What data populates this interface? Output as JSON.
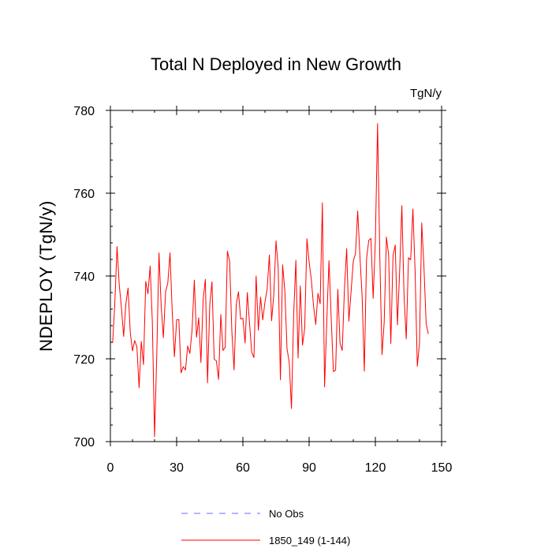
{
  "chart_data": {
    "type": "line",
    "title": "Total N Deployed in New Growth",
    "units": "TgN/y",
    "xlabel": "",
    "ylabel": "NDEPLOY  (TgN/y)",
    "xlim": [
      0,
      150
    ],
    "ylim": [
      700,
      780
    ],
    "xticks": [
      0,
      30,
      60,
      90,
      120,
      150
    ],
    "yticks": [
      700,
      720,
      740,
      760,
      780
    ],
    "grid": false,
    "legend_position": "bottom",
    "series": [
      {
        "name": "1850_149 (1-144)",
        "color": "#ff0000",
        "style": "solid",
        "x_start": 1,
        "values": [
          723.8,
          733.4,
          747.1,
          737.9,
          732.3,
          725.4,
          733.3,
          737.1,
          726.4,
          721.9,
          724.4,
          722.9,
          713.0,
          724.2,
          718.6,
          738.7,
          735.7,
          742.4,
          728.8,
          701.2,
          721.0,
          745.6,
          732.7,
          725.1,
          736.2,
          738.3,
          745.6,
          731.3,
          720.5,
          729.4,
          729.5,
          716.6,
          718.1,
          717.3,
          723.1,
          721.3,
          727.1,
          739.0,
          725.2,
          729.9,
          719.1,
          734.3,
          739.2,
          714.2,
          733.0,
          738.6,
          719.9,
          719.5,
          715.0,
          730.7,
          722.0,
          722.8,
          746.0,
          743.5,
          726.7,
          717.3,
          733.1,
          736.2,
          729.6,
          729.8,
          723.8,
          736.0,
          728.7,
          721.6,
          720.3,
          740.0,
          726.9,
          734.9,
          729.4,
          733.7,
          736.9,
          745.1,
          729.2,
          735.5,
          748.5,
          742.0,
          714.9,
          742.7,
          736.4,
          722.4,
          719.1,
          708.0,
          730.6,
          743.8,
          720.2,
          737.6,
          723.3,
          727.4,
          749.0,
          743.4,
          739.1,
          732.8,
          728.3,
          735.8,
          733.3,
          757.7,
          713.2,
          729.2,
          743.7,
          729.8,
          716.9,
          717.3,
          736.8,
          723.8,
          722.0,
          737.0,
          746.6,
          729.1,
          736.2,
          743.6,
          745.4,
          755.7,
          744.9,
          735.1,
          717.0,
          744.1,
          748.6,
          749.1,
          734.6,
          748.5,
          776.8,
          745.1,
          721.0,
          728.8,
          749.4,
          745.1,
          723.7,
          744.9,
          747.5,
          728.2,
          741.2,
          757.0,
          735.0,
          724.8,
          744.4,
          743.9,
          756.2,
          741.1,
          718.2,
          723.9,
          752.8,
          742.3,
          728.5,
          726.0
        ]
      }
    ],
    "legend": [
      {
        "label": "No Obs",
        "color": "#6b6bff",
        "style": "dashed"
      },
      {
        "label": "1850_149 (1-144)",
        "color": "#ff0000",
        "style": "solid"
      }
    ]
  }
}
